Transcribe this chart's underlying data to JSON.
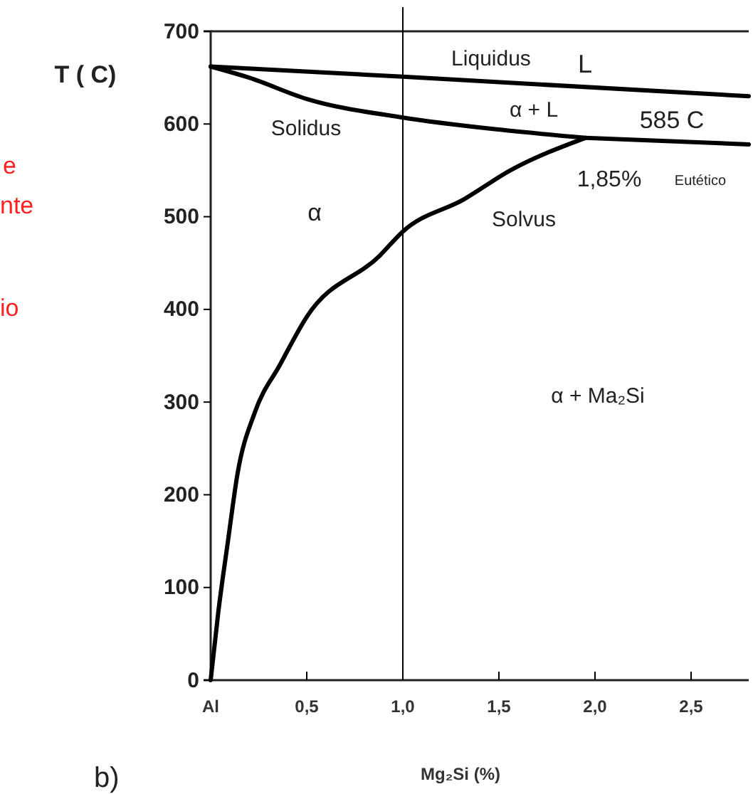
{
  "chart_data": {
    "type": "line",
    "xlabel": "Mg₂Si (%)",
    "ylabel": "T ( C)",
    "xlim": [
      0,
      2.8
    ],
    "ylim": [
      0,
      700
    ],
    "xticks": [
      {
        "value": 0,
        "label": "Al"
      },
      {
        "value": 0.5,
        "label": "0,5"
      },
      {
        "value": 1,
        "label": "1,0"
      },
      {
        "value": 1.5,
        "label": "1,5"
      },
      {
        "value": 2,
        "label": "2,0"
      },
      {
        "value": 2.5,
        "label": "2,5"
      }
    ],
    "yticks": [
      0,
      100,
      200,
      300,
      400,
      500,
      600,
      700
    ],
    "grid": false,
    "marker": "none",
    "line_style": "solid",
    "series": [
      {
        "color": "#000000",
        "x": [
          0,
          1,
          2.8
        ],
        "values": [
          662,
          651,
          630
        ]
      },
      {
        "color": "#000000",
        "x": [
          0,
          0.2,
          0.5,
          1,
          1.5,
          1.95
        ],
        "values": [
          662,
          650,
          627,
          607,
          594,
          585
        ]
      },
      {
        "color": "#000000",
        "x": [
          1.95,
          2.8
        ],
        "values": [
          585,
          578
        ]
      },
      {
        "color": "#000000",
        "x": [
          0,
          0.04,
          0.09,
          0.14,
          0.23,
          0.36,
          0.5,
          0.88,
          1,
          1.32,
          1.56,
          1.95
        ],
        "values": [
          0,
          74,
          150,
          223,
          289,
          340,
          392,
          458,
          484,
          519,
          550,
          585
        ]
      }
    ],
    "ref_lines": [
      {
        "axis": "x",
        "value": 1,
        "color": "#000000"
      }
    ],
    "annotations": [
      "Liquidus",
      "L",
      "α + L",
      "585  C",
      "Solidus",
      "α",
      "1,85%",
      "Eutético",
      "Solvus",
      "α + Ma₂Si",
      "e",
      "nte",
      "io",
      "b)"
    ]
  }
}
